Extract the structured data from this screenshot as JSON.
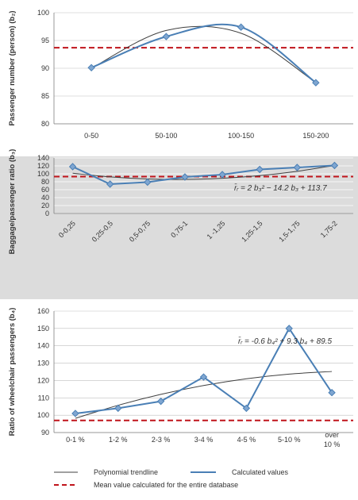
{
  "chart_data": [
    {
      "type": "line",
      "ylabel": "Passenger number (person) (b₂)",
      "categories": [
        "0-50",
        "50-100",
        "100-150",
        "150-200"
      ],
      "ylim": [
        80,
        100
      ],
      "yticks": [
        "80",
        "85",
        "90",
        "95",
        "100"
      ],
      "grid": "horizontal",
      "background": "white",
      "series": [
        {
          "name": "Calculated values",
          "values": [
            90.1,
            95.7,
            97.4,
            87.4
          ]
        },
        {
          "name": "Polynomial trendline",
          "values": [
            90.0,
            96.8,
            96.3,
            87.4
          ]
        },
        {
          "name": "Mean value calculated for the entire database",
          "values": [
            93.7,
            93.7,
            93.7,
            93.7
          ]
        }
      ]
    },
    {
      "type": "line",
      "ylabel": "Baggage/passenger ratio (b₃)",
      "categories": [
        "0-0,25",
        "0,25-0,5",
        "0,5-0,75",
        "0,75-1",
        "1 -1,25",
        "1,25-1,5",
        "1,5-1,75",
        "1,75-2"
      ],
      "ylim": [
        0,
        140
      ],
      "yticks": [
        "0",
        "20",
        "40",
        "60",
        "80",
        "100",
        "120",
        "140"
      ],
      "grid": "horizontal",
      "background": "gray",
      "equation": "r̄ᵣ = 2 b₃² − 14.2 b₃ + 113.7",
      "series": [
        {
          "name": "Calculated values",
          "values": [
            118,
            74,
            79,
            92,
            98,
            111,
            116,
            121
          ]
        },
        {
          "name": "Polynomial trendline",
          "values": [
            101.5,
            92.3,
            87.1,
            85.9,
            88.7,
            95.5,
            106.3,
            121.1
          ]
        },
        {
          "name": "Mean value calculated for the entire database",
          "values": [
            93,
            93,
            93,
            93,
            93,
            93,
            93,
            93
          ]
        }
      ]
    },
    {
      "type": "line",
      "ylabel": "Ratio of wheelchair passengers (b₄)",
      "categories": [
        "0-1 %",
        "1-2 %",
        "2-3 %",
        "3-4 %",
        "4-5 %",
        "5-10 %",
        "over 10 %"
      ],
      "ylim": [
        90,
        160
      ],
      "yticks": [
        "90",
        "100",
        "110",
        "120",
        "130",
        "140",
        "150",
        "160"
      ],
      "grid": "horizontal",
      "background": "white",
      "equation": "r̄ᵣ = -0.6 b₄² + 9.3 b₄ + 89.5",
      "series": [
        {
          "name": "Calculated values",
          "values": [
            101,
            104,
            108,
            122,
            104,
            150,
            113
          ]
        },
        {
          "name": "Polynomial trendline",
          "values": [
            98.2,
            105.7,
            112.0,
            117.1,
            121.0,
            123.7,
            125.2
          ]
        },
        {
          "name": "Mean value calculated for the entire database",
          "values": [
            97,
            97,
            97,
            97,
            97,
            97,
            97
          ]
        }
      ]
    }
  ],
  "legend": {
    "trendline": "Polynomial trendline",
    "calculated": "Calculated values",
    "mean": "Mean value calculated for the entire database"
  },
  "colors": {
    "calculated": "#4a7fb5",
    "marker": "#7fa6d1",
    "trendline": "#404040",
    "mean": "#c0141b",
    "gray_band": "#dcdcdc",
    "grid": "#bfbfbf"
  }
}
